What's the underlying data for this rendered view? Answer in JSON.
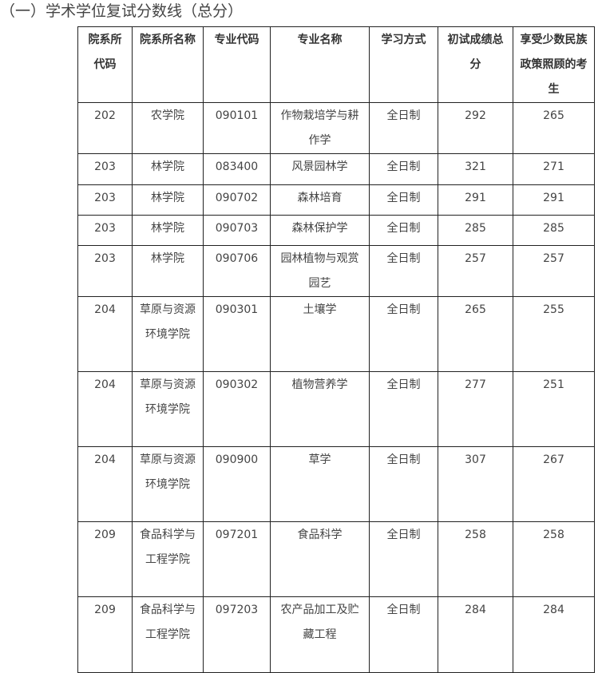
{
  "title": "（一）学术学位复试分数线（总分）",
  "headers": [
    "院系所代码",
    "院系所名称",
    "专业代码",
    "专业名称",
    "学习方式",
    "初试成绩总分",
    "享受少数民族政策照顾的考生"
  ],
  "rows": [
    [
      "202",
      "农学院",
      "090101",
      "作物栽培学与耕作学",
      "全日制",
      "292",
      "265"
    ],
    [
      "203",
      "林学院",
      "083400",
      "风景园林学",
      "全日制",
      "321",
      "271"
    ],
    [
      "203",
      "林学院",
      "090702",
      "森林培育",
      "全日制",
      "291",
      "291"
    ],
    [
      "203",
      "林学院",
      "090703",
      "森林保护学",
      "全日制",
      "285",
      "285"
    ],
    [
      "203",
      "林学院",
      "090706",
      "园林植物与观赏园艺",
      "全日制",
      "257",
      "257"
    ],
    [
      "204",
      "草原与资源环境学院",
      "090301",
      "土壤学",
      "全日制",
      "265",
      "255"
    ],
    [
      "204",
      "草原与资源环境学院",
      "090302",
      "植物营养学",
      "全日制",
      "277",
      "251"
    ],
    [
      "204",
      "草原与资源环境学院",
      "090900",
      "草学",
      "全日制",
      "307",
      "267"
    ],
    [
      "209",
      "食品科学与工程学院",
      "097201",
      "食品科学",
      "全日制",
      "258",
      "258"
    ],
    [
      "209",
      "食品科学与工程学院",
      "097203",
      "农产品加工及贮藏工程",
      "全日制",
      "284",
      "284"
    ]
  ]
}
